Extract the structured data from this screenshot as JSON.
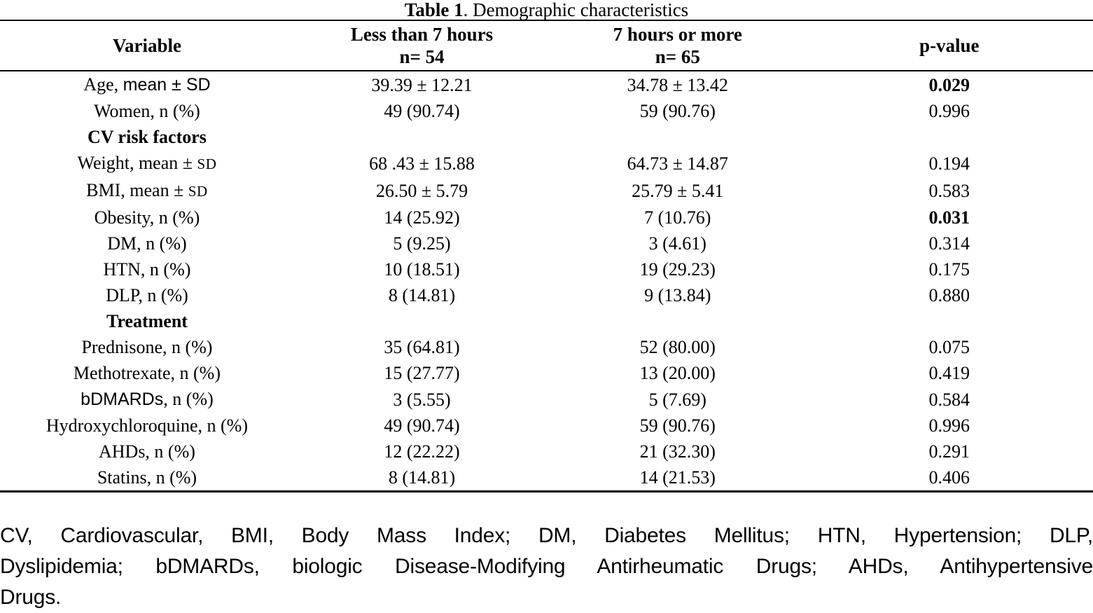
{
  "title": {
    "bold": "Table 1",
    "rest": ". Demographic characteristics"
  },
  "table": {
    "headers": {
      "variable": "Variable",
      "group1_line1": "Less than 7 hours",
      "group1_n": "n= 54",
      "group2_line1": "7 hours or more",
      "group2_n": "n= 65",
      "p_value": "p-value"
    },
    "rows": [
      {
        "label_parts": [
          {
            "text": "Age, ",
            "font": "serif"
          },
          {
            "text": "mean ± SD",
            "font": "sans"
          }
        ],
        "group1": "39.39 ± 12.21",
        "group2": "34.78 ± 13.42",
        "p": "0.029",
        "p_bold": true
      },
      {
        "label_parts": [
          {
            "text": "Women, n (%)",
            "font": "serif"
          }
        ],
        "group1": "49 (90.74)",
        "group2": "59 (90.76)",
        "p": "0.996"
      },
      {
        "section": true,
        "label_parts": [
          {
            "text": "CV risk factors",
            "font": "serif"
          }
        ],
        "group1": "",
        "group2": "",
        "p": ""
      },
      {
        "label_parts": [
          {
            "text": "Weight, mean ± ",
            "font": "serif"
          },
          {
            "text": "SD",
            "font": "sc"
          }
        ],
        "group1": "68 .43 ± 15.88",
        "group2": "64.73 ± 14.87",
        "p": "0.194"
      },
      {
        "label_parts": [
          {
            "text": "BMI, mean ± ",
            "font": "serif"
          },
          {
            "text": "SD",
            "font": "sc"
          }
        ],
        "group1": "26.50 ± 5.79",
        "group2": "25.79 ± 5.41",
        "p": "0.583"
      },
      {
        "label_parts": [
          {
            "text": "Obesity, n (%)",
            "font": "serif"
          }
        ],
        "group1": "14 (25.92)",
        "group2": "7 (10.76)",
        "p": "0.031",
        "p_bold": true
      },
      {
        "label_parts": [
          {
            "text": "DM, n (%)",
            "font": "serif"
          }
        ],
        "group1": "5 (9.25)",
        "group2": "3 (4.61)",
        "p": "0.314"
      },
      {
        "label_parts": [
          {
            "text": "HTN, n (%)",
            "font": "serif"
          }
        ],
        "group1": "10 (18.51)",
        "group2": "19 (29.23)",
        "p": "0.175"
      },
      {
        "label_parts": [
          {
            "text": "DLP, n (%)",
            "font": "serif"
          }
        ],
        "group1": "8 (14.81)",
        "group2": "9 (13.84)",
        "p": "0.880"
      },
      {
        "section": true,
        "label_parts": [
          {
            "text": "Treatment",
            "font": "serif"
          }
        ],
        "group1": "",
        "group2": "",
        "p": ""
      },
      {
        "label_parts": [
          {
            "text": "Prednisone, n (%)",
            "font": "serif"
          }
        ],
        "group1": "35 (64.81)",
        "group2": "52 (80.00)",
        "p": "0.075"
      },
      {
        "label_parts": [
          {
            "text": "Methotrexate, n (%)",
            "font": "serif"
          }
        ],
        "group1": "15 (27.77)",
        "group2": "13 (20.00)",
        "p": "0.419"
      },
      {
        "label_parts": [
          {
            "text": "bDMARDs",
            "font": "sans"
          },
          {
            "text": ", n (%)",
            "font": "serif"
          }
        ],
        "group1": "3 (5.55)",
        "group2": "5 (7.69)",
        "p": "0.584"
      },
      {
        "label_parts": [
          {
            "text": "Hydroxychloroquine, n (%)",
            "font": "serif"
          }
        ],
        "group1": "49 (90.74)",
        "group2": "59 (90.76)",
        "p": "0.996"
      },
      {
        "label_parts": [
          {
            "text": "AHDs, n (%)",
            "font": "serif"
          }
        ],
        "group1": "12 (22.22)",
        "group2": "21 (32.30)",
        "p": "0.291"
      },
      {
        "label_parts": [
          {
            "text": "Statins, n (%)",
            "font": "serif"
          }
        ],
        "group1": "8 (14.81)",
        "group2": "14 (21.53)",
        "p": "0.406"
      }
    ]
  },
  "footnote": {
    "lines": [
      "CV, Cardiovascular, BMI, Body Mass Index; DM, Diabetes Mellitus; HTN, Hypertension; DLP,",
      "Dyslipidemia; bDMARDs, biologic Disease-Modifying Antirheumatic Drugs; AHDs, Antihypertensive",
      "Drugs."
    ]
  },
  "colors": {
    "background": "#ffffff",
    "text": "#000000",
    "rule": "#000000"
  }
}
